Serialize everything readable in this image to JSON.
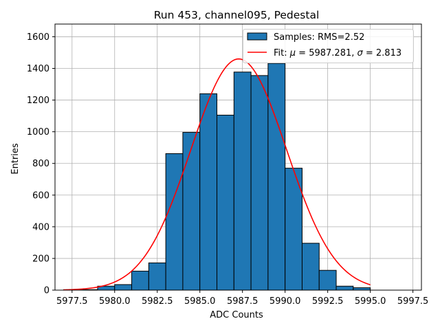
{
  "chart_data": {
    "type": "histogram",
    "title": "Run 453, channel095, Pedestal",
    "xlabel": "ADC Counts",
    "ylabel": "Entries",
    "xlim": [
      5976.5,
      5998.0
    ],
    "ylim": [
      0,
      1680
    ],
    "xticks": [
      5977.5,
      5980.0,
      5982.5,
      5985.0,
      5987.5,
      5990.0,
      5992.5,
      5995.0,
      5997.5
    ],
    "xtick_labels": [
      "5977.5",
      "5980.0",
      "5982.5",
      "5985.0",
      "5987.5",
      "5990.0",
      "5992.5",
      "5995.0",
      "5997.5"
    ],
    "yticks": [
      0,
      200,
      400,
      600,
      800,
      1000,
      1200,
      1400,
      1600
    ],
    "ytick_labels": [
      "0",
      "200",
      "400",
      "600",
      "800",
      "1000",
      "1200",
      "1400",
      "1600"
    ],
    "grid": true,
    "legend_position": "top-right",
    "bins": {
      "edges": [
        5977.0,
        5978.0,
        5979.0,
        5980.0,
        5981.0,
        5982.0,
        5983.0,
        5984.0,
        5985.0,
        5986.0,
        5987.0,
        5988.0,
        5989.0,
        5990.0,
        5991.0,
        5992.0,
        5993.0,
        5994.0,
        5995.0
      ],
      "counts": [
        2,
        3,
        25,
        35,
        120,
        172,
        862,
        996,
        1240,
        1105,
        1377,
        1355,
        1432,
        770,
        296,
        125,
        25,
        15
      ]
    },
    "fit": {
      "mu": 5987.281,
      "sigma": 2.813,
      "x_range": [
        5977.0,
        5995.0
      ],
      "amplitude": 1460
    },
    "series": [
      {
        "name": "Samples: RMS=2.52",
        "color": "#1f77b4",
        "kind": "bars"
      },
      {
        "name": "Fit: μ = 5987.281, σ = 2.813",
        "color": "#ff0000",
        "kind": "line"
      }
    ],
    "legend": {
      "samples_label": "Samples: RMS=2.52",
      "fit_prefix": "Fit: ",
      "fit_mu_symbol": "μ",
      "fit_mu_value": " = 5987.281, ",
      "fit_sigma_symbol": "σ",
      "fit_sigma_value": " = 2.813"
    }
  }
}
